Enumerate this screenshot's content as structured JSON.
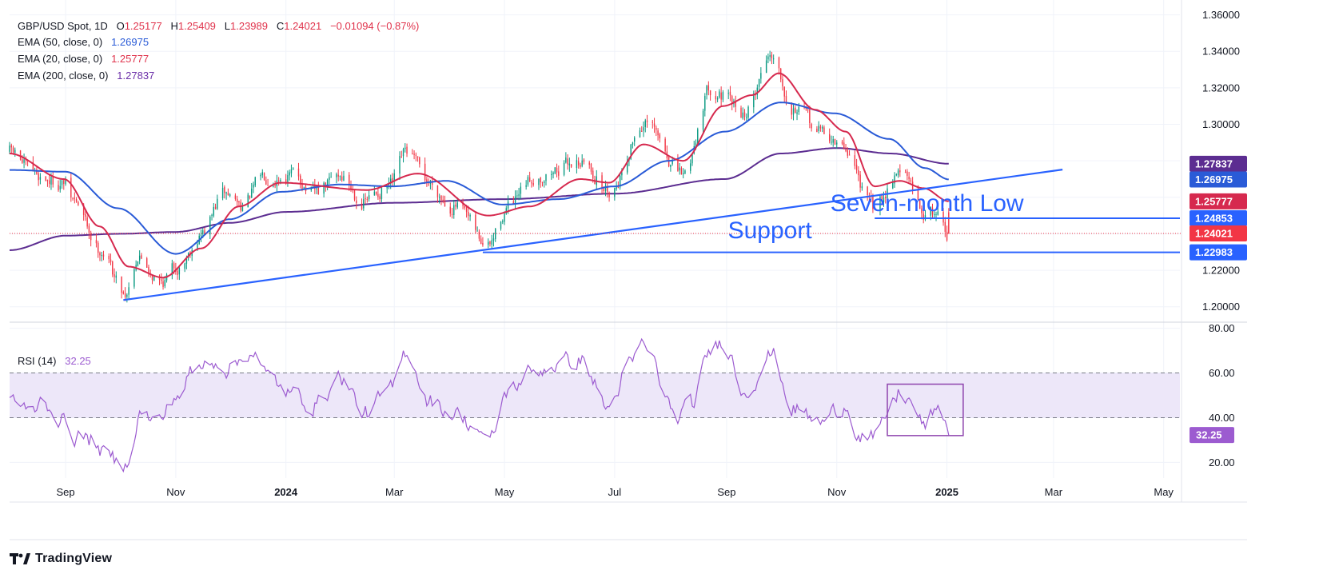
{
  "header": {
    "symbol": "GBP/USD Spot, 1D",
    "ohlc": {
      "o_label": "O",
      "o": "1.25177",
      "h_label": "H",
      "h": "1.25409",
      "l_label": "L",
      "l": "1.23989",
      "c_label": "C",
      "c": "1.24021",
      "change": "−0.01094 (−0.87%)"
    }
  },
  "indicators": {
    "ema50": {
      "label": "EMA (50, close, 0)",
      "value": "1.26975",
      "color": "#2a5bd7"
    },
    "ema20": {
      "label": "EMA (20, close, 0)",
      "value": "1.25777",
      "color": "#d6294e"
    },
    "ema200": {
      "label": "EMA (200, close, 0)",
      "value": "1.27837",
      "color": "#5c2d91"
    },
    "rsi": {
      "label": "RSI (14)",
      "value": "32.25",
      "color": "#9c5bd0"
    }
  },
  "brand": {
    "name": "TradingView"
  },
  "colors": {
    "up": "#089981",
    "down": "#f23645",
    "trendline": "#2962ff",
    "rsi_band": "#ede7f9"
  },
  "chart_data": {
    "type": "candlestick",
    "x_range": [
      "2023-08-01",
      "2025-05-10"
    ],
    "x_ticks": [
      {
        "label": "Sep",
        "date": "2023-09-01",
        "bold": false
      },
      {
        "label": "Nov",
        "date": "2023-11-01",
        "bold": false
      },
      {
        "label": "2024",
        "date": "2024-01-01",
        "bold": true
      },
      {
        "label": "Mar",
        "date": "2024-03-01",
        "bold": false
      },
      {
        "label": "May",
        "date": "2024-05-01",
        "bold": false
      },
      {
        "label": "Jul",
        "date": "2024-07-01",
        "bold": false
      },
      {
        "label": "Sep",
        "date": "2024-09-01",
        "bold": false
      },
      {
        "label": "Nov",
        "date": "2024-11-01",
        "bold": false
      },
      {
        "label": "2025",
        "date": "2025-01-01",
        "bold": true
      },
      {
        "label": "Mar",
        "date": "2025-03-01",
        "bold": false
      },
      {
        "label": "May",
        "date": "2025-05-01",
        "bold": false
      }
    ],
    "price_axis": {
      "range": [
        1.192,
        1.362
      ],
      "ticks": [
        "1.36000",
        "1.34000",
        "1.32000",
        "1.30000",
        "1.28000",
        "1.26000",
        "1.24000",
        "1.22000",
        "1.20000"
      ],
      "badges": [
        {
          "label": "1.27837",
          "value": 1.27837,
          "color": "#5c2d91"
        },
        {
          "label": "1.26975",
          "value": 1.26975,
          "color": "#2a5bd7"
        },
        {
          "label": "1.25777",
          "value": 1.25777,
          "color": "#d6294e"
        },
        {
          "label": "1.24853",
          "value": 1.24853,
          "color": "#2962ff"
        },
        {
          "label": "1.24021",
          "value": 1.24021,
          "color": "#f23645"
        },
        {
          "label": "1.22983",
          "value": 1.22983,
          "color": "#2962ff"
        }
      ],
      "last_price": 1.24021
    },
    "rsi_axis": {
      "range": [
        13,
        82
      ],
      "ticks": [
        "80.00",
        "60.00",
        "40.00",
        "20.00"
      ],
      "band": [
        40,
        60
      ],
      "badge": {
        "label": "32.25",
        "value": 32.25,
        "color": "#9c5bd0"
      }
    },
    "price_anchors": [
      [
        "2023-08-01",
        1.285
      ],
      [
        "2023-08-15",
        1.272
      ],
      [
        "2023-08-31",
        1.268
      ],
      [
        "2023-09-05",
        1.258
      ],
      [
        "2023-09-20",
        1.232
      ],
      [
        "2023-10-04",
        1.208
      ],
      [
        "2023-10-11",
        1.228
      ],
      [
        "2023-10-24",
        1.214
      ],
      [
        "2023-11-02",
        1.222
      ],
      [
        "2023-11-15",
        1.24
      ],
      [
        "2023-11-28",
        1.262
      ],
      [
        "2023-12-08",
        1.256
      ],
      [
        "2023-12-20",
        1.272
      ],
      [
        "2024-01-05",
        1.272
      ],
      [
        "2024-01-17",
        1.262
      ],
      [
        "2024-01-31",
        1.272
      ],
      [
        "2024-02-13",
        1.258
      ],
      [
        "2024-02-28",
        1.266
      ],
      [
        "2024-03-08",
        1.284
      ],
      [
        "2024-03-20",
        1.268
      ],
      [
        "2024-04-02",
        1.256
      ],
      [
        "2024-04-22",
        1.233
      ],
      [
        "2024-05-03",
        1.254
      ],
      [
        "2024-05-20",
        1.272
      ],
      [
        "2024-06-12",
        1.28
      ],
      [
        "2024-06-28",
        1.264
      ],
      [
        "2024-07-17",
        1.3
      ],
      [
        "2024-08-08",
        1.272
      ],
      [
        "2024-08-23",
        1.32
      ],
      [
        "2024-09-11",
        1.306
      ],
      [
        "2024-09-26",
        1.34
      ],
      [
        "2024-10-08",
        1.31
      ],
      [
        "2024-10-23",
        1.296
      ],
      [
        "2024-11-06",
        1.286
      ],
      [
        "2024-11-21",
        1.254
      ],
      [
        "2024-12-06",
        1.276
      ],
      [
        "2024-12-19",
        1.252
      ],
      [
        "2024-12-27",
        1.252
      ],
      [
        "2025-01-02",
        1.2402
      ]
    ],
    "ema_20_anchors": [
      [
        "2023-08-01",
        1.284
      ],
      [
        "2023-08-31",
        1.27
      ],
      [
        "2023-09-20",
        1.244
      ],
      [
        "2023-10-06",
        1.222
      ],
      [
        "2023-10-25",
        1.216
      ],
      [
        "2023-11-15",
        1.232
      ],
      [
        "2023-12-06",
        1.255
      ],
      [
        "2023-12-29",
        1.268
      ],
      [
        "2024-02-15",
        1.264
      ],
      [
        "2024-03-14",
        1.273
      ],
      [
        "2024-04-22",
        1.25
      ],
      [
        "2024-05-15",
        1.255
      ],
      [
        "2024-06-12",
        1.27
      ],
      [
        "2024-06-28",
        1.268
      ],
      [
        "2024-07-17",
        1.289
      ],
      [
        "2024-08-08",
        1.28
      ],
      [
        "2024-08-30",
        1.31
      ],
      [
        "2024-09-15",
        1.316
      ],
      [
        "2024-09-30",
        1.328
      ],
      [
        "2024-10-20",
        1.308
      ],
      [
        "2024-11-06",
        1.296
      ],
      [
        "2024-11-22",
        1.266
      ],
      [
        "2024-12-06",
        1.269
      ],
      [
        "2024-12-19",
        1.265
      ],
      [
        "2025-01-02",
        1.2578
      ]
    ],
    "ema_50_anchors": [
      [
        "2023-08-01",
        1.275
      ],
      [
        "2023-09-01",
        1.274
      ],
      [
        "2023-09-30",
        1.254
      ],
      [
        "2023-11-01",
        1.229
      ],
      [
        "2023-12-01",
        1.248
      ],
      [
        "2023-12-29",
        1.263
      ],
      [
        "2024-01-31",
        1.267
      ],
      [
        "2024-02-29",
        1.266
      ],
      [
        "2024-03-30",
        1.269
      ],
      [
        "2024-04-30",
        1.256
      ],
      [
        "2024-05-31",
        1.259
      ],
      [
        "2024-07-01",
        1.266
      ],
      [
        "2024-07-31",
        1.28
      ],
      [
        "2024-08-31",
        1.296
      ],
      [
        "2024-10-01",
        1.312
      ],
      [
        "2024-10-31",
        1.306
      ],
      [
        "2024-11-30",
        1.292
      ],
      [
        "2024-12-20",
        1.276
      ],
      [
        "2025-01-02",
        1.2698
      ]
    ],
    "ema_200_anchors": [
      [
        "2023-08-01",
        1.231
      ],
      [
        "2023-09-01",
        1.239
      ],
      [
        "2023-10-01",
        1.24
      ],
      [
        "2023-11-01",
        1.241
      ],
      [
        "2023-12-01",
        1.246
      ],
      [
        "2024-01-01",
        1.252
      ],
      [
        "2024-03-01",
        1.257
      ],
      [
        "2024-05-01",
        1.259
      ],
      [
        "2024-07-01",
        1.262
      ],
      [
        "2024-08-31",
        1.27
      ],
      [
        "2024-10-01",
        1.284
      ],
      [
        "2024-11-01",
        1.287
      ],
      [
        "2024-12-01",
        1.284
      ],
      [
        "2025-01-02",
        1.2784
      ]
    ],
    "rsi_anchors": [
      [
        "2023-08-01",
        50
      ],
      [
        "2023-08-12",
        42
      ],
      [
        "2023-08-20",
        48
      ],
      [
        "2023-08-28",
        40
      ],
      [
        "2023-09-06",
        32
      ],
      [
        "2023-09-15",
        30
      ],
      [
        "2023-09-25",
        22
      ],
      [
        "2023-10-03",
        18
      ],
      [
        "2023-10-13",
        42
      ],
      [
        "2023-10-22",
        38
      ],
      [
        "2023-11-02",
        50
      ],
      [
        "2023-11-10",
        60
      ],
      [
        "2023-11-22",
        66
      ],
      [
        "2023-12-01",
        62
      ],
      [
        "2023-12-13",
        70
      ],
      [
        "2023-12-22",
        58
      ],
      [
        "2024-01-05",
        50
      ],
      [
        "2024-01-17",
        46
      ],
      [
        "2024-01-31",
        58
      ],
      [
        "2024-02-14",
        42
      ],
      [
        "2024-02-28",
        52
      ],
      [
        "2024-03-08",
        70
      ],
      [
        "2024-03-20",
        48
      ],
      [
        "2024-04-03",
        42
      ],
      [
        "2024-04-15",
        36
      ],
      [
        "2024-04-22",
        28
      ],
      [
        "2024-05-03",
        52
      ],
      [
        "2024-05-15",
        60
      ],
      [
        "2024-05-30",
        64
      ],
      [
        "2024-06-12",
        66
      ],
      [
        "2024-06-28",
        44
      ],
      [
        "2024-07-08",
        62
      ],
      [
        "2024-07-17",
        72
      ],
      [
        "2024-08-05",
        40
      ],
      [
        "2024-08-13",
        46
      ],
      [
        "2024-08-23",
        70
      ],
      [
        "2024-08-30",
        75
      ],
      [
        "2024-09-11",
        52
      ],
      [
        "2024-09-26",
        68
      ],
      [
        "2024-10-08",
        44
      ],
      [
        "2024-10-23",
        38
      ],
      [
        "2024-11-06",
        46
      ],
      [
        "2024-11-14",
        32
      ],
      [
        "2024-11-22",
        30
      ],
      [
        "2024-12-02",
        46
      ],
      [
        "2024-12-06",
        52
      ],
      [
        "2024-12-13",
        46
      ],
      [
        "2024-12-19",
        36
      ],
      [
        "2024-12-24",
        42
      ],
      [
        "2024-12-30",
        40
      ],
      [
        "2025-01-02",
        32.25
      ]
    ],
    "trendline": {
      "from": [
        "2023-10-03",
        1.2037
      ],
      "to": [
        "2025-03-06",
        1.2752
      ]
    },
    "horizontal_lines": [
      {
        "name": "seven-month-low",
        "from": "2024-11-22",
        "to": "2025-05-10",
        "value": 1.24853
      },
      {
        "name": "support",
        "from": "2024-04-19",
        "to": "2025-05-10",
        "value": 1.22983
      }
    ],
    "annotations": [
      {
        "name": "seven-month-low-label",
        "text": "Seven-month Low",
        "date": "2024-12-21",
        "value": 1.2525
      },
      {
        "name": "support-label",
        "text": "Support",
        "date": "2024-09-25",
        "value": 1.2375
      }
    ],
    "rsi_box": {
      "from": "2024-11-29",
      "to": "2025-01-10",
      "range": [
        32,
        55
      ]
    }
  }
}
